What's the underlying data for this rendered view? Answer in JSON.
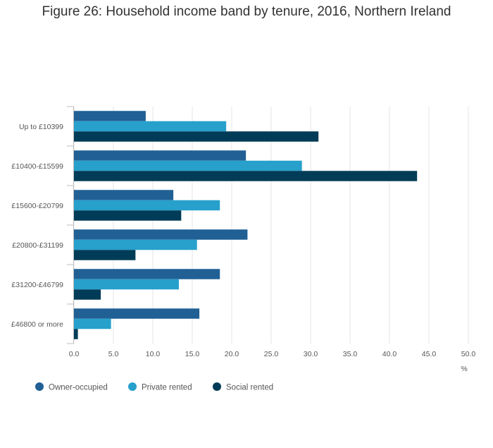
{
  "title": "Figure 26: Household income band by tenure, 2016, Northern Ireland",
  "chart_data": {
    "type": "bar",
    "orientation": "horizontal",
    "categories": [
      "Up to £10399",
      "£10400-£15599",
      "£15600-£20799",
      "£20800-£31199",
      "£31200-£46799",
      "£46800 or more"
    ],
    "series": [
      {
        "name": "Owner-occupied",
        "color": "#206095",
        "values": [
          9.1,
          21.8,
          12.6,
          22.0,
          18.5,
          15.9
        ]
      },
      {
        "name": "Private rented",
        "color": "#27a0cc",
        "values": [
          19.3,
          28.9,
          18.5,
          15.6,
          13.3,
          4.7
        ]
      },
      {
        "name": "Social rented",
        "color": "#003c57",
        "values": [
          31.0,
          43.5,
          13.6,
          7.8,
          3.4,
          0.5
        ]
      }
    ],
    "xlim": [
      0,
      50
    ],
    "xticks": [
      "0.0",
      "5.0",
      "10.0",
      "15.0",
      "20.0",
      "25.0",
      "30.0",
      "35.0",
      "40.0",
      "45.0",
      "50.0"
    ],
    "xunit": "%",
    "grid": true,
    "legend_position": "bottom-left"
  }
}
